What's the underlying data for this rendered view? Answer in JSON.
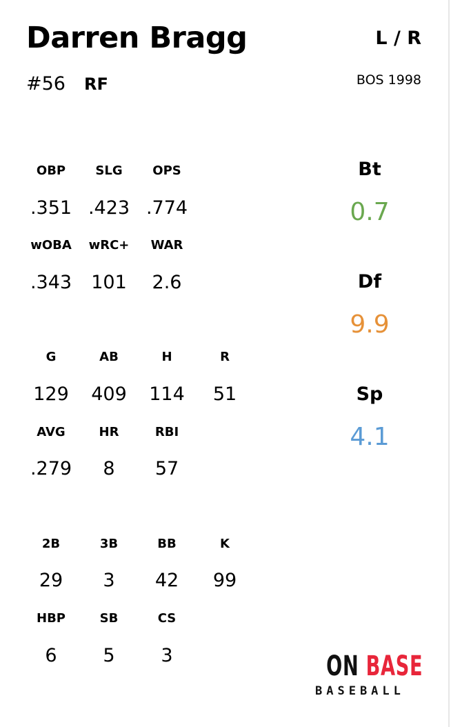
{
  "player": {
    "name": "Darren Bragg",
    "handedness": "L / R",
    "number": "#56",
    "position": "RF",
    "team_year": "BOS 1998"
  },
  "ratings": {
    "batting": {
      "label": "Bt",
      "value": "0.7",
      "color": "#6aa84f"
    },
    "defense": {
      "label": "Df",
      "value": "9.9",
      "color": "#e69138"
    },
    "speed": {
      "label": "Sp",
      "value": "4.1",
      "color": "#5b9bd5"
    }
  },
  "stats": {
    "advanced": {
      "row1": [
        {
          "label": "OBP",
          "value": ".351"
        },
        {
          "label": "SLG",
          "value": ".423"
        },
        {
          "label": "OPS",
          "value": ".774"
        }
      ],
      "row2": [
        {
          "label": "wOBA",
          "value": ".343"
        },
        {
          "label": "wRC+",
          "value": "101"
        },
        {
          "label": "WAR",
          "value": "2.6"
        }
      ]
    },
    "counting": {
      "row1": [
        {
          "label": "G",
          "value": "129"
        },
        {
          "label": "AB",
          "value": "409"
        },
        {
          "label": "H",
          "value": "114"
        },
        {
          "label": "R",
          "value": "51"
        }
      ],
      "row2": [
        {
          "label": "AVG",
          "value": ".279"
        },
        {
          "label": "HR",
          "value": "8"
        },
        {
          "label": "RBI",
          "value": "57"
        }
      ]
    },
    "other": {
      "row1": [
        {
          "label": "2B",
          "value": "29"
        },
        {
          "label": "3B",
          "value": "3"
        },
        {
          "label": "BB",
          "value": "42"
        },
        {
          "label": "K",
          "value": "99"
        }
      ],
      "row2": [
        {
          "label": "HBP",
          "value": "6"
        },
        {
          "label": "SB",
          "value": "5"
        },
        {
          "label": "CS",
          "value": "3"
        }
      ]
    }
  },
  "logo": {
    "top_left": "ON",
    "top_right": "BASE",
    "bottom": "BASEBALL"
  }
}
